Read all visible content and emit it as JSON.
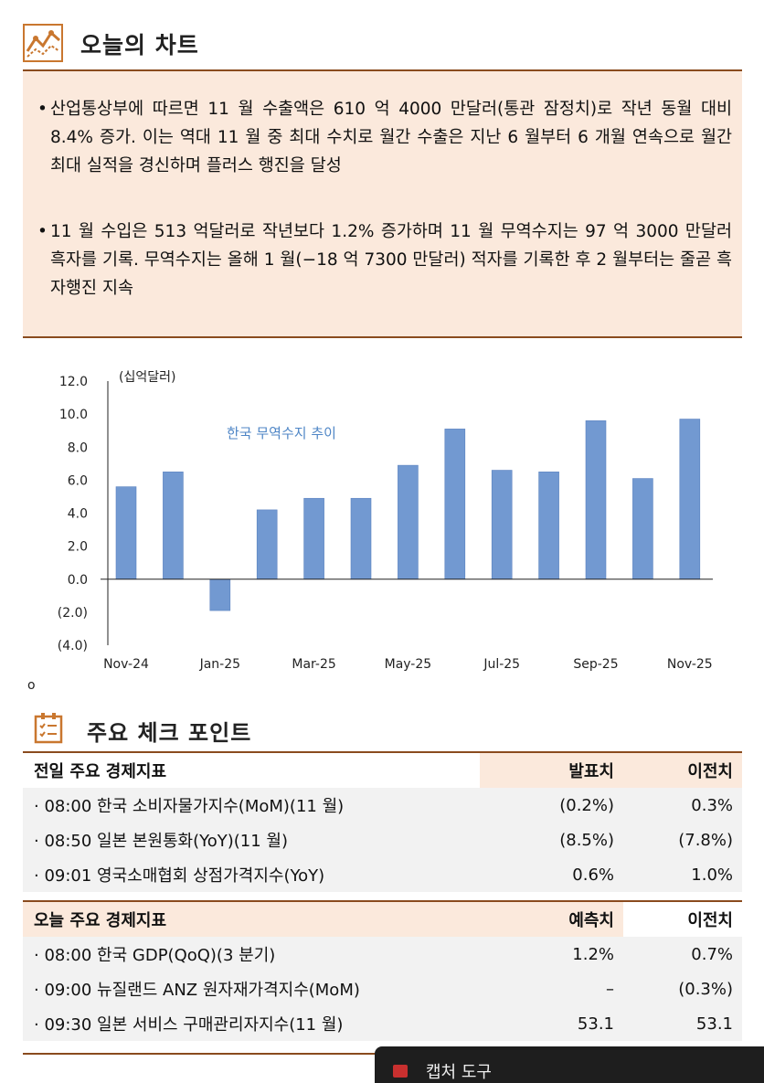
{
  "section1": {
    "title": "오늘의 차트",
    "icon": "line-chart-icon"
  },
  "summary": {
    "bullets": [
      "산업통상부에 따르면 11 월 수출액은 610 억 4000 만달러(통관 잠정치)로 작년 동월 대비 8.4% 증가. 이는 역대 11 월 중 최대 수치로 월간 수출은 지난 6 월부터 6 개월 연속으로 월간 최대 실적을 경신하며 플러스 행진을 달성",
      "11 월 수입은 513 억달러로 작년보다 1.2% 증가하며 11 월 무역수지는 97 억 3000 만달러 흑자를 기록. 무역수지는 올해 1 월(−18 억 7300 만달러) 적자를 기록한 후 2 월부터는 줄곧 흑자행진 지속"
    ]
  },
  "chart_data": {
    "type": "bar",
    "title": "",
    "annotation": "한국 무역수지 추이",
    "ylabel": "(십억달러)",
    "xlabel": "",
    "categories": [
      "Nov-24",
      "Dec-24",
      "Jan-25",
      "Feb-25",
      "Mar-25",
      "Apr-25",
      "May-25",
      "Jun-25",
      "Jul-25",
      "Aug-25",
      "Sep-25",
      "Oct-25",
      "Nov-25"
    ],
    "x_tick_labels": [
      "Nov-24",
      "Jan-25",
      "Mar-25",
      "May-25",
      "Jul-25",
      "Sep-25",
      "Nov-25"
    ],
    "y_tick_labels": [
      "12.0",
      "10.0",
      "8.0",
      "6.0",
      "4.0",
      "2.0",
      "0.0",
      "(2.0)",
      "(4.0)"
    ],
    "values": [
      5.6,
      6.5,
      -1.9,
      4.2,
      4.9,
      4.9,
      6.9,
      9.1,
      6.6,
      6.5,
      9.6,
      6.1,
      9.7
    ],
    "ylim": [
      -4.0,
      12.0
    ],
    "grid": false,
    "bar_color": "#7299d1"
  },
  "stray_mark": "o",
  "section2": {
    "title": "주요 체크 포인트",
    "icon": "checklist-icon"
  },
  "table_prev": {
    "headers": [
      "전일 주요 경제지표",
      "발표치",
      "이전치"
    ],
    "rows": [
      [
        "· 08:00 한국 소비자물가지수(MoM)(11 월)",
        "(0.2%)",
        "0.3%"
      ],
      [
        "· 08:50 일본 본원통화(YoY)(11 월)",
        "(8.5%)",
        "(7.8%)"
      ],
      [
        "· 09:01 영국소매협회 상점가격지수(YoY)",
        "0.6%",
        "1.0%"
      ]
    ]
  },
  "table_today": {
    "headers": [
      "오늘 주요 경제지표",
      "예측치",
      "이전치"
    ],
    "rows": [
      [
        "· 08:00 한국 GDP(QoQ)(3 분기)",
        "1.2%",
        "0.7%"
      ],
      [
        "· 09:00 뉴질랜드 ANZ 원자재가격지수(MoM)",
        "–",
        "(0.3%)"
      ],
      [
        "· 09:30 일본 서비스 구매관리자지수(11 월)",
        "53.1",
        "53.1"
      ]
    ]
  },
  "taskbar": {
    "label": "캡처 도구",
    "icon": "snipping-tool-icon"
  }
}
